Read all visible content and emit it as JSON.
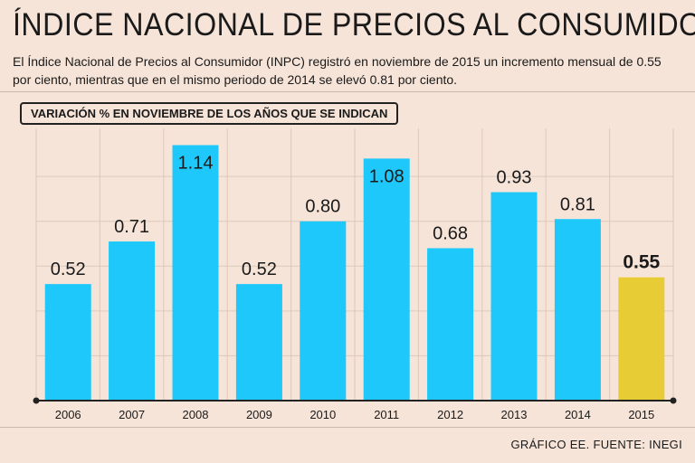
{
  "header": {
    "title": "ÍNDICE NACIONAL DE PRECIOS AL CONSUMIDOR",
    "subtitle": "El Índice Nacional de Precios al Consumidor (INPC) registró en noviembre de 2015 un incremento mensual de 0.55 por ciento, mientras que en el mismo periodo de 2014 se elevó 0.81 por ciento."
  },
  "footer": {
    "source": "GRÁFICO EE. FUENTE: INEGI"
  },
  "colors": {
    "bar": "#1ec8fb",
    "highlight": "#e8cc35",
    "background": "#f6e4d8"
  },
  "chart_data": {
    "type": "bar",
    "title": "VARIACIÓN % EN NOVIEMBRE DE LOS AÑOS QUE SE INDICAN",
    "categories": [
      "2006",
      "2007",
      "2008",
      "2009",
      "2010",
      "2011",
      "2012",
      "2013",
      "2014",
      "2015"
    ],
    "values": [
      0.52,
      0.71,
      1.14,
      0.52,
      0.8,
      1.08,
      0.68,
      0.93,
      0.81,
      0.55
    ],
    "labels": [
      "0.52",
      "0.71",
      "1.14",
      "0.52",
      "0.80",
      "1.08",
      "0.68",
      "0.93",
      "0.81",
      "0.55"
    ],
    "highlight_index": 9,
    "xlabel": "",
    "ylabel": "",
    "ylim": [
      0,
      1.15
    ],
    "grid": true
  }
}
